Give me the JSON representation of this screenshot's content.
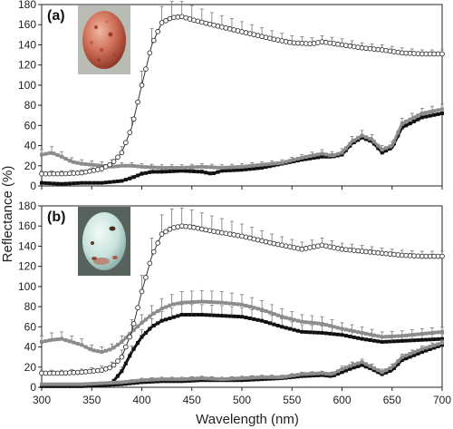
{
  "colors": {
    "open_series": "#333333",
    "grey_series": "#8c8c8c",
    "black_series": "#111111",
    "axis": "#222222"
  },
  "shared_axes": {
    "xlabel": "Wavelength (nm)",
    "ylabel": "Reflectance (%)",
    "x_ticks": [
      "300",
      "350",
      "400",
      "450",
      "500",
      "550",
      "600",
      "650",
      "700"
    ]
  },
  "chart_data": [
    {
      "type": "line",
      "panel_label": "(a)",
      "inset": "red-speckled-egg-photo",
      "xlim": [
        300,
        700
      ],
      "ylim": [
        0,
        180
      ],
      "y_ticks": [
        "0",
        "20",
        "40",
        "60",
        "80",
        "100",
        "120",
        "140",
        "160",
        "180"
      ],
      "grid": false,
      "series": [
        {
          "marker": "open-circle",
          "x": [
            300,
            320,
            340,
            360,
            370,
            380,
            390,
            400,
            410,
            420,
            430,
            440,
            450,
            470,
            500,
            530,
            550,
            570,
            580,
            600,
            620,
            640,
            660,
            680,
            700
          ],
          "y": [
            12,
            12,
            13,
            17,
            22,
            33,
            58,
            100,
            140,
            162,
            167,
            168,
            165,
            160,
            153,
            146,
            142,
            141,
            143,
            140,
            137,
            135,
            132,
            131,
            131
          ],
          "err": [
            3,
            3,
            3,
            3,
            4,
            6,
            10,
            14,
            16,
            16,
            16,
            15,
            14,
            12,
            10,
            8,
            7,
            6,
            6,
            6,
            5,
            5,
            5,
            4,
            4
          ]
        },
        {
          "marker": "grey-square",
          "x": [
            300,
            310,
            320,
            330,
            340,
            350,
            360,
            370,
            380,
            390,
            400,
            420,
            440,
            460,
            480,
            500,
            520,
            540,
            560,
            580,
            590,
            600,
            610,
            620,
            630,
            640,
            650,
            660,
            680,
            700
          ],
          "y": [
            31,
            33,
            29,
            24,
            22,
            21,
            20,
            19,
            20,
            20,
            19,
            18,
            18,
            19,
            18,
            19,
            21,
            23,
            28,
            32,
            30,
            33,
            44,
            50,
            46,
            36,
            40,
            62,
            72,
            76
          ],
          "err": [
            5,
            6,
            5,
            4,
            4,
            4,
            4,
            3,
            3,
            3,
            3,
            3,
            3,
            3,
            3,
            3,
            3,
            3,
            3,
            4,
            4,
            4,
            5,
            5,
            5,
            4,
            4,
            5,
            5,
            5
          ]
        },
        {
          "marker": "black-square",
          "x": [
            300,
            320,
            340,
            360,
            370,
            380,
            390,
            400,
            410,
            420,
            440,
            460,
            470,
            480,
            500,
            520,
            540,
            560,
            580,
            590,
            600,
            610,
            620,
            630,
            640,
            650,
            660,
            680,
            700
          ],
          "y": [
            3,
            2,
            3,
            3,
            4,
            5,
            8,
            12,
            14,
            14,
            15,
            14,
            12,
            15,
            16,
            18,
            22,
            26,
            29,
            29,
            31,
            42,
            48,
            44,
            33,
            38,
            58,
            68,
            72
          ],
          "err": [
            1,
            1,
            1,
            1,
            1,
            1,
            2,
            2,
            2,
            2,
            2,
            2,
            2,
            2,
            2,
            2,
            2,
            2,
            3,
            3,
            3,
            3,
            3,
            3,
            3,
            3,
            3,
            3,
            3
          ]
        }
      ]
    },
    {
      "type": "line",
      "panel_label": "(b)",
      "inset": "pale-blue-spotted-egg-photo",
      "xlim": [
        300,
        700
      ],
      "ylim": [
        0,
        180
      ],
      "y_ticks": [
        "0",
        "20",
        "40",
        "60",
        "80",
        "100",
        "120",
        "140",
        "160",
        "180"
      ],
      "grid": false,
      "series": [
        {
          "marker": "open-circle",
          "x": [
            300,
            320,
            340,
            360,
            370,
            380,
            390,
            400,
            410,
            420,
            430,
            440,
            450,
            470,
            500,
            530,
            560,
            580,
            600,
            620,
            640,
            660,
            680,
            700
          ],
          "y": [
            14,
            14,
            15,
            17,
            20,
            30,
            55,
            95,
            130,
            152,
            158,
            160,
            159,
            155,
            150,
            143,
            137,
            141,
            137,
            135,
            133,
            131,
            130,
            130
          ],
          "err": [
            3,
            3,
            3,
            4,
            5,
            7,
            12,
            16,
            18,
            19,
            19,
            18,
            17,
            15,
            12,
            9,
            7,
            7,
            6,
            6,
            5,
            5,
            5,
            5
          ]
        },
        {
          "marker": "grey-square",
          "x": [
            300,
            310,
            320,
            330,
            340,
            350,
            360,
            370,
            380,
            390,
            400,
            410,
            420,
            430,
            440,
            460,
            480,
            500,
            520,
            540,
            560,
            580,
            600,
            620,
            640,
            660,
            680,
            700
          ],
          "y": [
            45,
            47,
            48,
            45,
            42,
            37,
            35,
            38,
            45,
            55,
            64,
            72,
            78,
            82,
            84,
            85,
            84,
            82,
            77,
            70,
            65,
            63,
            58,
            54,
            50,
            51,
            53,
            55
          ],
          "err": [
            6,
            7,
            7,
            6,
            6,
            5,
            5,
            5,
            6,
            7,
            8,
            9,
            10,
            10,
            11,
            11,
            11,
            10,
            9,
            8,
            7,
            7,
            6,
            6,
            5,
            5,
            5,
            5
          ]
        },
        {
          "marker": "black-square",
          "x": [
            300,
            320,
            340,
            360,
            370,
            380,
            390,
            400,
            410,
            420,
            440,
            460,
            480,
            500,
            520,
            540,
            560,
            580,
            600,
            620,
            640,
            660,
            680,
            700
          ],
          "y": [
            2,
            2,
            2,
            3,
            4,
            16,
            35,
            50,
            60,
            66,
            72,
            72,
            71,
            70,
            66,
            60,
            55,
            54,
            52,
            48,
            45,
            46,
            47,
            48
          ],
          "err": [
            1,
            1,
            1,
            1,
            2,
            4,
            6,
            7,
            8,
            9,
            10,
            10,
            10,
            9,
            9,
            8,
            7,
            7,
            6,
            6,
            5,
            5,
            5,
            5
          ]
        },
        {
          "marker": "grey-square",
          "x": [
            300,
            320,
            340,
            360,
            380,
            400,
            420,
            440,
            460,
            480,
            500,
            520,
            540,
            560,
            580,
            590,
            600,
            610,
            620,
            630,
            640,
            650,
            660,
            680,
            700
          ],
          "y": [
            3,
            3,
            3,
            4,
            5,
            7,
            8,
            8,
            9,
            8,
            9,
            10,
            10,
            13,
            14,
            13,
            18,
            22,
            25,
            20,
            15,
            20,
            30,
            38,
            44
          ],
          "err": [
            1,
            1,
            1,
            1,
            1,
            2,
            2,
            2,
            2,
            2,
            2,
            2,
            2,
            2,
            2,
            2,
            3,
            3,
            3,
            3,
            3,
            3,
            3,
            3,
            3
          ]
        },
        {
          "marker": "black-square",
          "x": [
            300,
            320,
            340,
            360,
            380,
            400,
            420,
            440,
            460,
            480,
            500,
            520,
            540,
            560,
            580,
            590,
            600,
            610,
            620,
            630,
            640,
            650,
            660,
            680,
            700
          ],
          "y": [
            1,
            1,
            1,
            2,
            3,
            5,
            6,
            6,
            7,
            7,
            7,
            8,
            9,
            11,
            12,
            11,
            15,
            19,
            22,
            18,
            13,
            17,
            27,
            35,
            42
          ],
          "err": [
            1,
            1,
            1,
            1,
            1,
            1,
            1,
            1,
            1,
            1,
            1,
            1,
            1,
            2,
            2,
            2,
            2,
            2,
            2,
            2,
            2,
            2,
            2,
            2,
            2
          ]
        }
      ]
    }
  ]
}
